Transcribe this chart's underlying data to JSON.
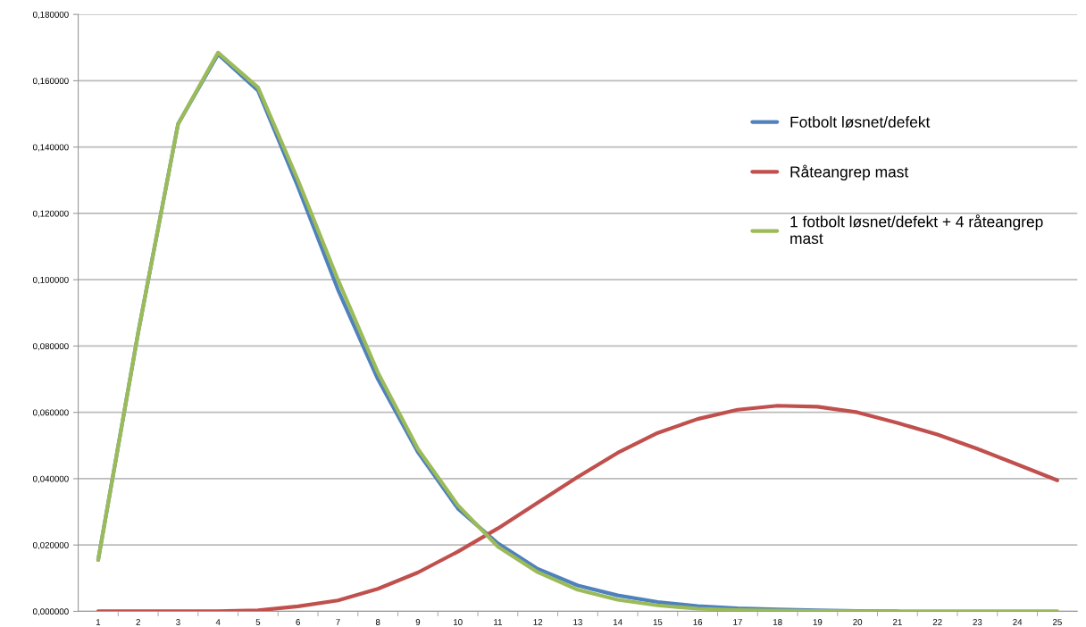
{
  "chart_data": {
    "type": "line",
    "categories": [
      "1",
      "2",
      "3",
      "4",
      "5",
      "6",
      "7",
      "8",
      "9",
      "10",
      "11",
      "12",
      "13",
      "14",
      "15",
      "16",
      "17",
      "18",
      "19",
      "20",
      "21",
      "22",
      "23",
      "24",
      "25"
    ],
    "series": [
      {
        "name": "Fotbolt løsnet/defekt",
        "color": "#4f81bd",
        "values": [
          0.0155,
          0.084,
          0.147,
          0.168,
          0.157,
          0.128,
          0.097,
          0.07,
          0.048,
          0.031,
          0.0205,
          0.0128,
          0.0078,
          0.0048,
          0.0028,
          0.0016,
          0.0009,
          0.0006,
          0.0003,
          0.0001,
          0,
          null,
          null,
          null,
          null
        ]
      },
      {
        "name": "Råteangrep mast",
        "color": "#c0504d",
        "values": [
          0,
          0,
          0,
          0,
          0.0003,
          0.0015,
          0.0033,
          0.0068,
          0.0117,
          0.018,
          0.025,
          0.0328,
          0.0405,
          0.0478,
          0.0538,
          0.058,
          0.0608,
          0.062,
          0.0617,
          0.06,
          0.0568,
          0.0533,
          0.049,
          0.0443,
          0.0395
        ]
      },
      {
        "name": "1 fotbolt løsnet/defekt + 4 råteangrep mast",
        "color": "#9bbb59",
        "values": [
          0.0155,
          0.084,
          0.147,
          0.1685,
          0.158,
          0.13,
          0.1,
          0.072,
          0.049,
          0.032,
          0.0195,
          0.0118,
          0.0065,
          0.0035,
          0.0018,
          0.0008,
          0.0004,
          0.0002,
          0.0001,
          0,
          0,
          0,
          0,
          0,
          0
        ]
      }
    ],
    "ylim": [
      0,
      0.18
    ],
    "yticks": [
      {
        "value": 0,
        "label": "0,000000"
      },
      {
        "value": 0.02,
        "label": "0,020000"
      },
      {
        "value": 0.04,
        "label": "0,040000"
      },
      {
        "value": 0.06,
        "label": "0,060000"
      },
      {
        "value": 0.08,
        "label": "0,080000"
      },
      {
        "value": 0.1,
        "label": "0,100000"
      },
      {
        "value": 0.12,
        "label": "0,120000"
      },
      {
        "value": 0.14,
        "label": "0,140000"
      },
      {
        "value": 0.16,
        "label": "0,160000"
      },
      {
        "value": 0.18,
        "label": "0,180000"
      }
    ],
    "grid": "y",
    "legend": "right",
    "marker": "none",
    "line_style": "solid"
  }
}
